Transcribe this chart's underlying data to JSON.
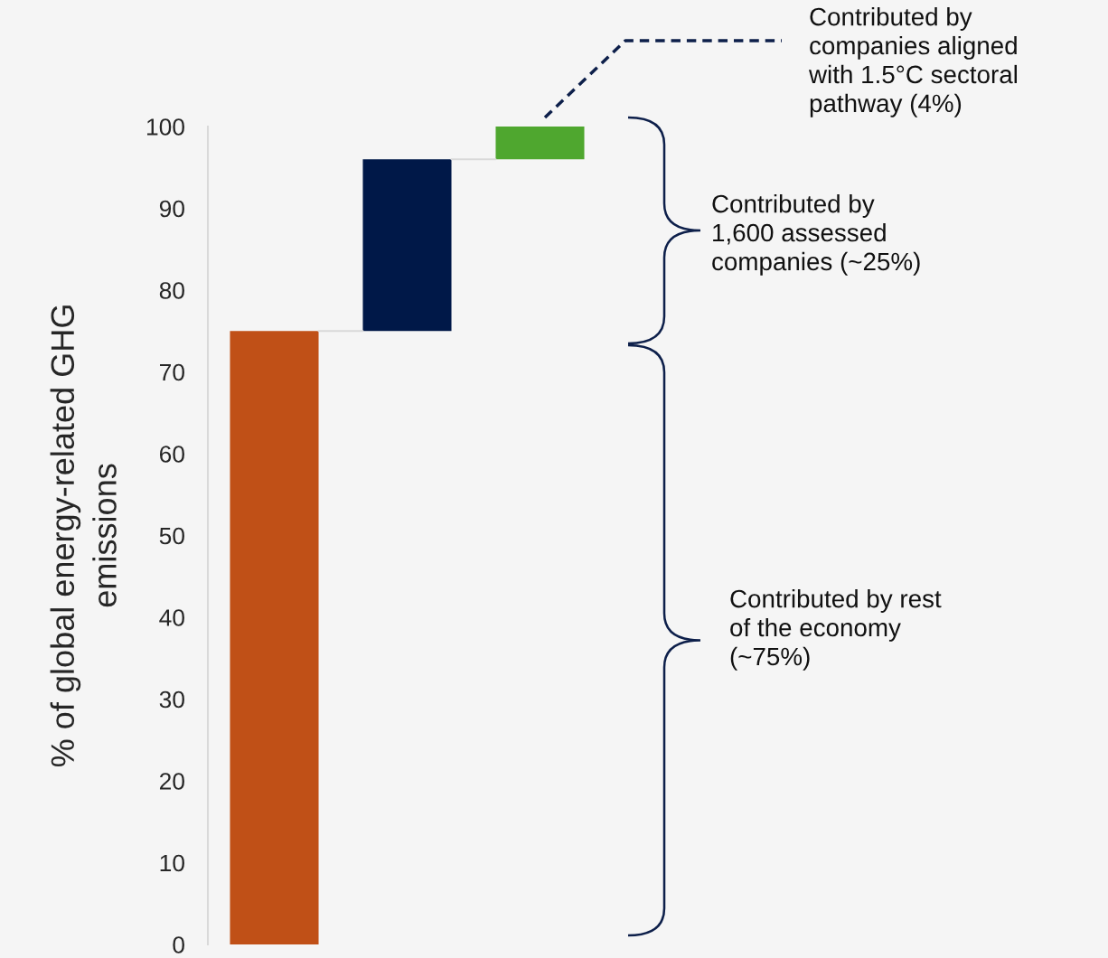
{
  "chart_data": {
    "type": "bar",
    "ylabel": "% of global energy-related GHG\nemissions",
    "categories": [
      null,
      null,
      null
    ],
    "values": [
      75,
      21,
      4
    ],
    "base": [
      0,
      75,
      96
    ],
    "colors": [
      "#c05017",
      "#001848",
      "#4fa72f"
    ],
    "ylim": [
      0,
      100
    ],
    "yticks": [
      0,
      10,
      20,
      30,
      40,
      50,
      60,
      70,
      80,
      90,
      100
    ],
    "grid": false,
    "tick_labels": "y",
    "annotations": [
      "Contributed by\ncompanies aligned\nwith 1.5°C sectoral\npathway (4%)",
      "Contributed by\n1,600 assessed\ncompanies (~25%)",
      "Contributed by rest\nof the economy\n(~75%)"
    ]
  }
}
